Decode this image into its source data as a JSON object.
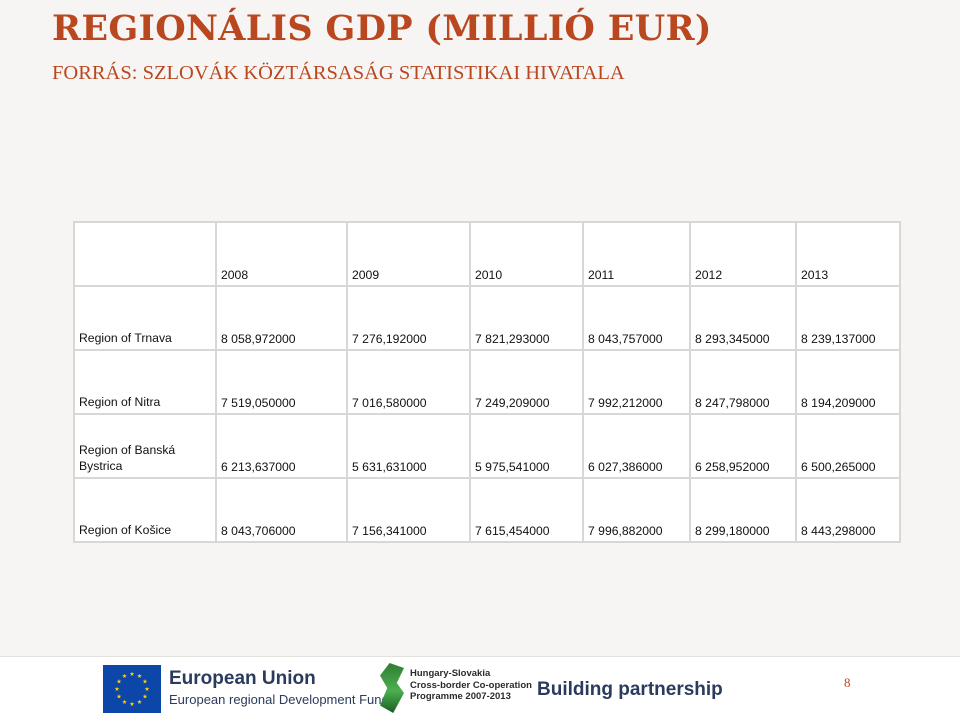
{
  "title": "REGIONÁLIS GDP (MILLIÓ EUR)",
  "subtitle": "FORRÁS: SZLOVÁK KÖZTÁRSASÁG STATISTIKAI HIVATALA",
  "table": {
    "corner": "",
    "years": [
      "2008",
      "2009",
      "2010",
      "2011",
      "2012",
      "2013"
    ],
    "rows": [
      {
        "region": "Region of Trnava",
        "values": [
          "8 058,972000",
          "7 276,192000",
          "7 821,293000",
          "8 043,757000",
          "8 293,345000",
          "8 239,137000"
        ]
      },
      {
        "region": "Region of Nitra",
        "values": [
          "7 519,050000",
          "7 016,580000",
          "7 249,209000",
          "7 992,212000",
          "8 247,798000",
          "8 194,209000"
        ]
      },
      {
        "region": "Region of Banská Bystrica",
        "values": [
          "6 213,637000",
          "5 631,631000",
          "5 975,541000",
          "6 027,386000",
          "6 258,952000",
          "6 500,265000"
        ]
      },
      {
        "region": "Region of Košice",
        "values": [
          "8 043,706000",
          "7 156,341000",
          "7 615,454000",
          "7 996,882000",
          "8 299,180000",
          "8 443,298000"
        ]
      }
    ]
  },
  "footer": {
    "eu_title": "European Union",
    "eu_subtitle": "European regional Development Fund",
    "eu_flag_icon": "eu-flag-icon",
    "programme_lines": [
      "Hungary-Slovakia",
      "Cross-border Co-operation",
      "Programme 2007-2013"
    ],
    "programme_icon": "programme-logo-icon",
    "slogan": "Building partnership",
    "page_number": "8"
  },
  "colors": {
    "title": "#b9471f",
    "footer_text": "#2a3b5e",
    "eu_blue": "#0b46a8",
    "eu_star": "#ffd200"
  }
}
